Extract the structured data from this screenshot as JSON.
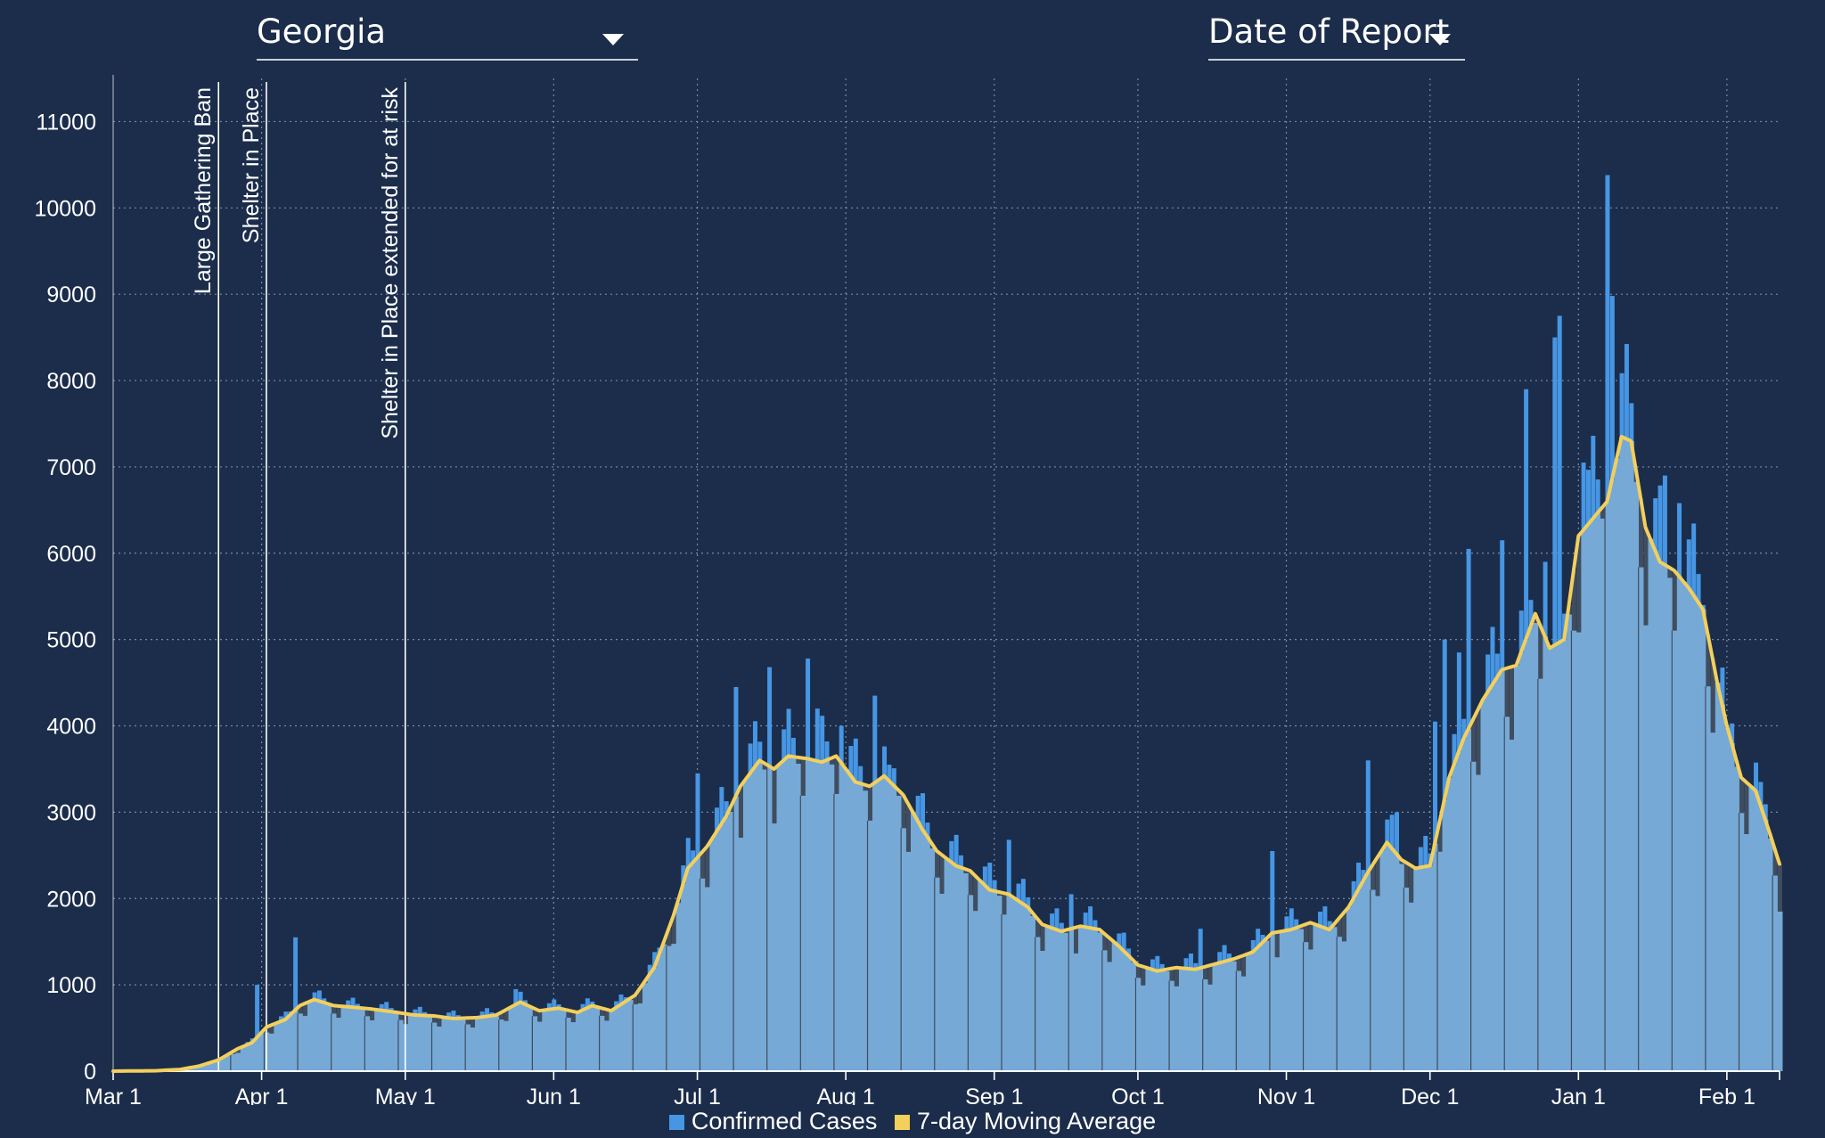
{
  "controls": {
    "state_select": "Georgia",
    "date_mode_select": "Date of Report"
  },
  "colors": {
    "background": "#1b2d4b",
    "bar_light": "#76a9d6",
    "bar_bright": "#4796e4",
    "bar_dark": "#3f4d5f",
    "average_line": "#f3cf5c",
    "grid": "#8fa1bb"
  },
  "chart_data": {
    "type": "bar",
    "title": "",
    "xlabel": "",
    "ylabel": "",
    "x_start": "2020-03-01",
    "x_end": "2021-02-12",
    "ylim": [
      0,
      11500
    ],
    "y_ticks": [
      0,
      1000,
      2000,
      3000,
      4000,
      5000,
      6000,
      7000,
      8000,
      9000,
      10000,
      11000
    ],
    "x_ticks": [
      {
        "date": "2020-03-01",
        "label": "Mar 1"
      },
      {
        "date": "2020-04-01",
        "label": "Apr 1"
      },
      {
        "date": "2020-05-01",
        "label": "May 1"
      },
      {
        "date": "2020-06-01",
        "label": "Jun 1"
      },
      {
        "date": "2020-07-01",
        "label": "Jul 1"
      },
      {
        "date": "2020-08-01",
        "label": "Aug 1"
      },
      {
        "date": "2020-09-01",
        "label": "Sep 1"
      },
      {
        "date": "2020-10-01",
        "label": "Oct 1"
      },
      {
        "date": "2020-11-01",
        "label": "Nov 1"
      },
      {
        "date": "2020-12-01",
        "label": "Dec 1"
      },
      {
        "date": "2021-01-01",
        "label": "Jan 1"
      },
      {
        "date": "2021-02-01",
        "label": "Feb 1"
      }
    ],
    "grid": true,
    "legend_position": "bottom",
    "legend": [
      "Confirmed Cases",
      "7-day Moving Average"
    ],
    "annotations": [
      {
        "date": "2020-03-23",
        "label": "Large Gathering Ban"
      },
      {
        "date": "2020-04-02",
        "label": "Shelter in Place"
      },
      {
        "date": "2020-05-01",
        "label": "Shelter in Place extended for at risk"
      }
    ],
    "series": [
      {
        "name": "7-day Moving Average",
        "type": "line",
        "points": [
          [
            "2020-03-01",
            0
          ],
          [
            "2020-03-10",
            5
          ],
          [
            "2020-03-15",
            20
          ],
          [
            "2020-03-19",
            60
          ],
          [
            "2020-03-23",
            130
          ],
          [
            "2020-03-27",
            260
          ],
          [
            "2020-03-30",
            330
          ],
          [
            "2020-04-02",
            510
          ],
          [
            "2020-04-06",
            600
          ],
          [
            "2020-04-09",
            760
          ],
          [
            "2020-04-12",
            830
          ],
          [
            "2020-04-16",
            760
          ],
          [
            "2020-04-20",
            740
          ],
          [
            "2020-04-24",
            720
          ],
          [
            "2020-04-28",
            690
          ],
          [
            "2020-05-03",
            650
          ],
          [
            "2020-05-07",
            640
          ],
          [
            "2020-05-11",
            610
          ],
          [
            "2020-05-16",
            620
          ],
          [
            "2020-05-20",
            650
          ],
          [
            "2020-05-25",
            800
          ],
          [
            "2020-05-29",
            700
          ],
          [
            "2020-06-02",
            730
          ],
          [
            "2020-06-06",
            680
          ],
          [
            "2020-06-09",
            760
          ],
          [
            "2020-06-13",
            700
          ],
          [
            "2020-06-18",
            880
          ],
          [
            "2020-06-22",
            1200
          ],
          [
            "2020-06-26",
            1800
          ],
          [
            "2020-06-29",
            2350
          ],
          [
            "2020-07-03",
            2600
          ],
          [
            "2020-07-07",
            2950
          ],
          [
            "2020-07-10",
            3300
          ],
          [
            "2020-07-14",
            3600
          ],
          [
            "2020-07-17",
            3500
          ],
          [
            "2020-07-20",
            3650
          ],
          [
            "2020-07-24",
            3620
          ],
          [
            "2020-07-27",
            3580
          ],
          [
            "2020-07-30",
            3650
          ],
          [
            "2020-08-03",
            3350
          ],
          [
            "2020-08-06",
            3300
          ],
          [
            "2020-08-09",
            3420
          ],
          [
            "2020-08-13",
            3200
          ],
          [
            "2020-08-17",
            2800
          ],
          [
            "2020-08-20",
            2550
          ],
          [
            "2020-08-24",
            2380
          ],
          [
            "2020-08-27",
            2320
          ],
          [
            "2020-08-31",
            2100
          ],
          [
            "2020-09-04",
            2050
          ],
          [
            "2020-09-08",
            1900
          ],
          [
            "2020-09-11",
            1700
          ],
          [
            "2020-09-15",
            1620
          ],
          [
            "2020-09-19",
            1680
          ],
          [
            "2020-09-23",
            1640
          ],
          [
            "2020-09-27",
            1450
          ],
          [
            "2020-10-01",
            1230
          ],
          [
            "2020-10-05",
            1160
          ],
          [
            "2020-10-09",
            1200
          ],
          [
            "2020-10-13",
            1180
          ],
          [
            "2020-10-17",
            1240
          ],
          [
            "2020-10-21",
            1300
          ],
          [
            "2020-10-25",
            1380
          ],
          [
            "2020-10-29",
            1600
          ],
          [
            "2020-11-02",
            1640
          ],
          [
            "2020-11-06",
            1720
          ],
          [
            "2020-11-10",
            1640
          ],
          [
            "2020-11-14",
            1900
          ],
          [
            "2020-11-18",
            2300
          ],
          [
            "2020-11-22",
            2650
          ],
          [
            "2020-11-25",
            2450
          ],
          [
            "2020-11-28",
            2350
          ],
          [
            "2020-12-01",
            2380
          ],
          [
            "2020-12-05",
            3400
          ],
          [
            "2020-12-08",
            3850
          ],
          [
            "2020-12-12",
            4300
          ],
          [
            "2020-12-16",
            4650
          ],
          [
            "2020-12-19",
            4700
          ],
          [
            "2020-12-23",
            5300
          ],
          [
            "2020-12-26",
            4900
          ],
          [
            "2020-12-29",
            5000
          ],
          [
            "2021-01-01",
            6200
          ],
          [
            "2021-01-04",
            6400
          ],
          [
            "2021-01-07",
            6600
          ],
          [
            "2021-01-10",
            7350
          ],
          [
            "2021-01-12",
            7300
          ],
          [
            "2021-01-15",
            6300
          ],
          [
            "2021-01-18",
            5900
          ],
          [
            "2021-01-21",
            5800
          ],
          [
            "2021-01-24",
            5600
          ],
          [
            "2021-01-27",
            5350
          ],
          [
            "2021-01-30",
            4500
          ],
          [
            "2021-02-01",
            4000
          ],
          [
            "2021-02-04",
            3400
          ],
          [
            "2021-02-07",
            3250
          ],
          [
            "2021-02-10",
            2750
          ],
          [
            "2021-02-12",
            2400
          ]
        ]
      },
      {
        "name": "Confirmed Cases",
        "type": "bar",
        "peaks": [
          [
            "2020-03-31",
            1000
          ],
          [
            "2020-04-08",
            1550
          ],
          [
            "2020-05-24",
            950
          ],
          [
            "2020-06-20",
            1020
          ],
          [
            "2020-06-27",
            1950
          ],
          [
            "2020-07-01",
            3450
          ],
          [
            "2020-07-09",
            4450
          ],
          [
            "2020-07-16",
            4680
          ],
          [
            "2020-07-24",
            4780
          ],
          [
            "2020-07-26",
            4200
          ],
          [
            "2020-07-31",
            4000
          ],
          [
            "2020-08-07",
            4350
          ],
          [
            "2020-08-10",
            3550
          ],
          [
            "2020-08-25",
            2500
          ],
          [
            "2020-09-04",
            2680
          ],
          [
            "2020-09-17",
            2050
          ],
          [
            "2020-10-14",
            1650
          ],
          [
            "2020-10-29",
            2550
          ],
          [
            "2020-11-18",
            3600
          ],
          [
            "2020-11-24",
            3000
          ],
          [
            "2020-12-02",
            4050
          ],
          [
            "2020-12-04",
            5000
          ],
          [
            "2020-12-07",
            4850
          ],
          [
            "2020-12-09",
            6050
          ],
          [
            "2020-12-16",
            6150
          ],
          [
            "2020-12-21",
            7900
          ],
          [
            "2020-12-25",
            5900
          ],
          [
            "2020-12-27",
            8500
          ],
          [
            "2020-12-28",
            8750
          ],
          [
            "2021-01-02",
            7050
          ],
          [
            "2021-01-07",
            10380
          ],
          [
            "2021-01-08",
            8980
          ],
          [
            "2021-01-19",
            6900
          ],
          [
            "2021-01-22",
            6580
          ],
          [
            "2021-01-27",
            5400
          ],
          [
            "2021-02-01",
            3980
          ],
          [
            "2021-02-08",
            3350
          ],
          [
            "2021-02-12",
            1850
          ]
        ]
      }
    ]
  }
}
